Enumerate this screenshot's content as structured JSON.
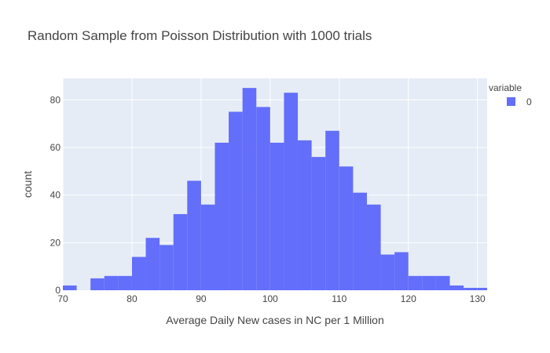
{
  "chart_data": {
    "type": "bar",
    "title": "Random Sample from Poisson Distribution with 1000 trials",
    "xlabel": "Average Daily New cases in NC per 1 Million",
    "ylabel": "count",
    "xlim": [
      70,
      131.4
    ],
    "ylim": [
      0,
      89
    ],
    "xticks": [
      70,
      80,
      90,
      100,
      110,
      120,
      130
    ],
    "yticks": [
      0,
      20,
      40,
      60,
      80
    ],
    "bin_width": 2,
    "bins": [
      {
        "x0": 70,
        "count": 2
      },
      {
        "x0": 72,
        "count": 0
      },
      {
        "x0": 74,
        "count": 5
      },
      {
        "x0": 76,
        "count": 6
      },
      {
        "x0": 78,
        "count": 6
      },
      {
        "x0": 80,
        "count": 14
      },
      {
        "x0": 82,
        "count": 22
      },
      {
        "x0": 84,
        "count": 19
      },
      {
        "x0": 86,
        "count": 32
      },
      {
        "x0": 88,
        "count": 46
      },
      {
        "x0": 90,
        "count": 36
      },
      {
        "x0": 92,
        "count": 62
      },
      {
        "x0": 94,
        "count": 75
      },
      {
        "x0": 96,
        "count": 85
      },
      {
        "x0": 98,
        "count": 77
      },
      {
        "x0": 100,
        "count": 62
      },
      {
        "x0": 102,
        "count": 83
      },
      {
        "x0": 104,
        "count": 63
      },
      {
        "x0": 106,
        "count": 56
      },
      {
        "x0": 108,
        "count": 67
      },
      {
        "x0": 110,
        "count": 52
      },
      {
        "x0": 112,
        "count": 41
      },
      {
        "x0": 114,
        "count": 36
      },
      {
        "x0": 116,
        "count": 15
      },
      {
        "x0": 118,
        "count": 16
      },
      {
        "x0": 120,
        "count": 6
      },
      {
        "x0": 122,
        "count": 6
      },
      {
        "x0": 124,
        "count": 6
      },
      {
        "x0": 126,
        "count": 2
      },
      {
        "x0": 128,
        "count": 1
      },
      {
        "x0": 130,
        "count": 1
      }
    ],
    "legend": {
      "title": "variable",
      "items": [
        {
          "name": "0",
          "color": "#636efa"
        }
      ],
      "position": "top-right"
    },
    "grid": true,
    "colors": {
      "bar": "#636efa",
      "plot_bg": "#e5ecf6",
      "grid": "#ffffff"
    }
  }
}
